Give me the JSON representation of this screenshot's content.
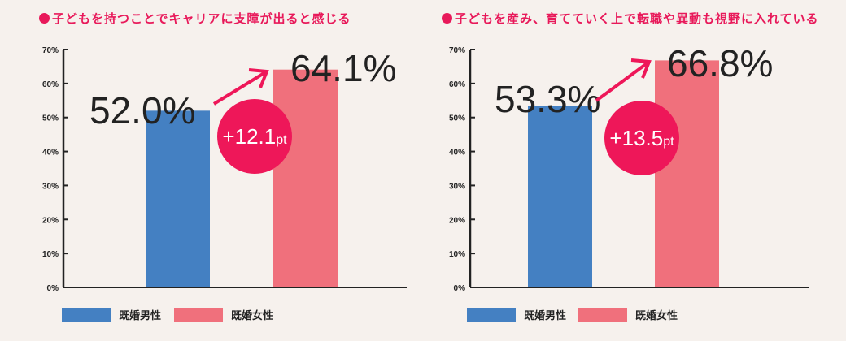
{
  "colors": {
    "male": "#4480c2",
    "female": "#f0707c",
    "accent": "#ee1759"
  },
  "chart_data": [
    {
      "type": "bar",
      "title": "子どもを持つことでキャリアに支障が出ると感じる",
      "categories": [
        "既婚男性",
        "既婚女性"
      ],
      "values": [
        52.0,
        64.1
      ],
      "value_labels": [
        "52.0%",
        "64.1%"
      ],
      "difference": "+12.1",
      "difference_unit": "pt",
      "yticks": [
        "0%",
        "10%",
        "20%",
        "30%",
        "40%",
        "50%",
        "60%",
        "70%"
      ],
      "ylim": [
        0,
        70
      ],
      "legend": [
        "既婚男性",
        "既婚女性"
      ],
      "legend_position": "bottom-left"
    },
    {
      "type": "bar",
      "title": "子どもを産み、育てていく上で転職や異動も視野に入れている",
      "categories": [
        "既婚男性",
        "既婚女性"
      ],
      "values": [
        53.3,
        66.8
      ],
      "value_labels": [
        "53.3%",
        "66.8%"
      ],
      "difference": "+13.5",
      "difference_unit": "pt",
      "yticks": [
        "0%",
        "10%",
        "20%",
        "30%",
        "40%",
        "50%",
        "60%",
        "70%"
      ],
      "ylim": [
        0,
        70
      ],
      "legend": [
        "既婚男性",
        "既婚女性"
      ],
      "legend_position": "bottom-left"
    }
  ]
}
